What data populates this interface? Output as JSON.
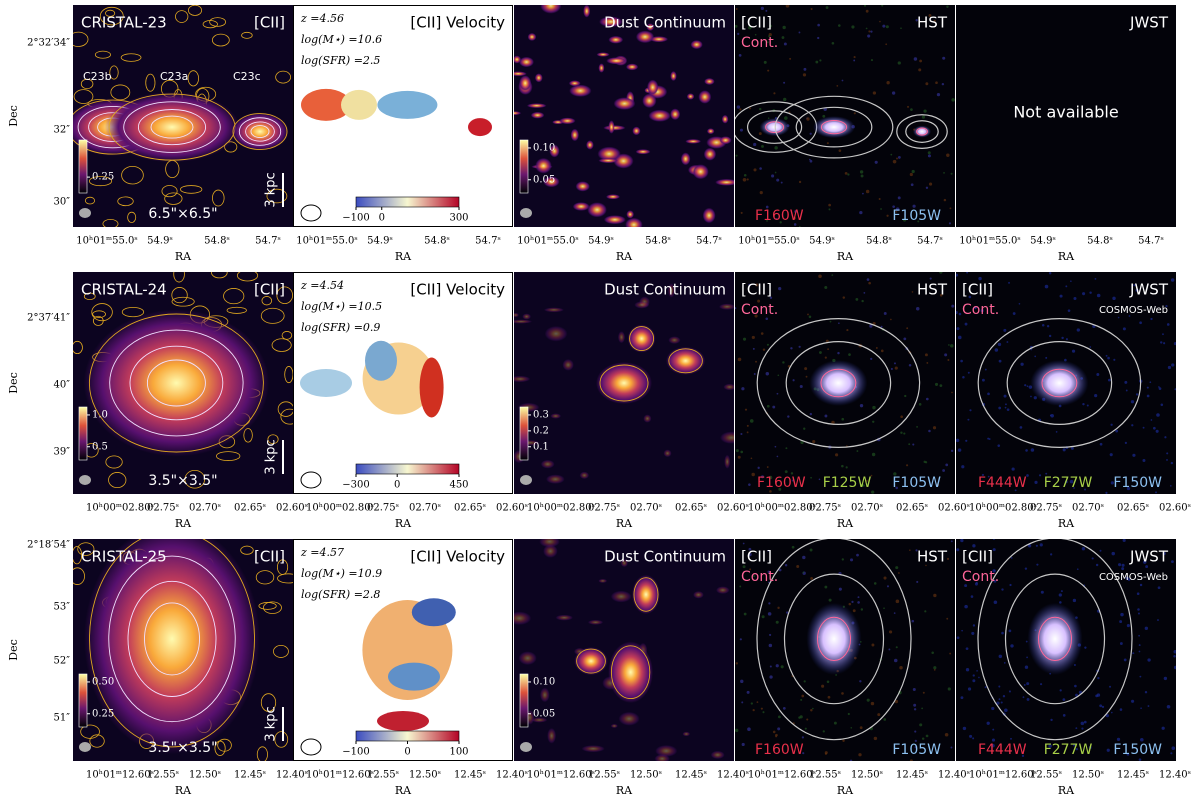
{
  "axis_label_x": "RA",
  "axis_label_y": "Dec",
  "rows": [
    {
      "dec_ticks": [
        "2°32′34″",
        "32″",
        "30″"
      ],
      "ra_ticks": [
        "10ʰ01ᵐ55.0ˢ",
        "54.9ˢ",
        "54.8ˢ",
        "54.7ˢ"
      ],
      "panels": [
        {
          "name": "CRISTAL-23",
          "line": "[CII]",
          "components": [
            "C23b",
            "C23a",
            "C23c"
          ],
          "size": "6.5\"×6.5\"",
          "scale": "3 kpc",
          "colorbar": [
            0.25
          ]
        },
        {
          "z": "z =4.56",
          "mass": "log(M⋆) =10.6",
          "sfr": "log(SFR) =2.5",
          "title": "[CII] Velocity",
          "colorbar": [
            {
              "value": -100,
              "label": "−100"
            },
            0,
            300
          ]
        },
        {
          "title": "Dust Continuum",
          "colorbar": [
            {
              "value": 0.1,
              "label": "0.10"
            },
            0.05
          ]
        },
        {
          "cii": "[CII]",
          "cont": "Cont.",
          "title": "HST",
          "filters": [
            "F160W",
            "F105W"
          ]
        },
        {
          "title": "JWST",
          "note": "Not available"
        }
      ]
    },
    {
      "dec_ticks": [
        "2°37′41″",
        "40″",
        "39″"
      ],
      "ra_ticks": [
        "10ʰ00ᵐ02.80ˢ",
        "02.75ˢ",
        "02.70ˢ",
        "02.65ˢ",
        "02.60ˢ"
      ],
      "panels": [
        {
          "name": "CRISTAL-24",
          "line": "[CII]",
          "size": "3.5\"×3.5\"",
          "scale": "3 kpc",
          "colorbar": [
            {
              "value": 1,
              "label": "1.0"
            },
            0.5
          ]
        },
        {
          "z": "z =4.54",
          "mass": "log(M⋆) =10.5",
          "sfr": "log(SFR) =0.9",
          "title": "[CII] Velocity",
          "colorbar": [
            {
              "value": -300,
              "label": "−300"
            },
            0,
            450
          ]
        },
        {
          "title": "Dust Continuum",
          "colorbar": [
            0.3,
            0.2,
            0.1
          ]
        },
        {
          "cii": "[CII]",
          "cont": "Cont.",
          "title": "HST",
          "filters": [
            "F160W",
            "F125W",
            "F105W"
          ]
        },
        {
          "cii": "[CII]",
          "cont": "Cont.",
          "title": "JWST",
          "survey": "COSMOS-Web",
          "filters": [
            "F444W",
            "F277W",
            "F150W"
          ]
        }
      ]
    },
    {
      "dec_ticks": [
        "2°18′54″",
        "53″",
        "52″",
        "51″"
      ],
      "ra_ticks": [
        "10ʰ01ᵐ12.60ˢ",
        "12.55ˢ",
        "12.50ˢ",
        "12.45ˢ",
        "12.40ˢ"
      ],
      "panels": [
        {
          "name": "CRISTAL-25",
          "line": "[CII]",
          "size": "3.5\"×3.5\"",
          "scale": "3 kpc",
          "colorbar": [
            {
              "value": 0.5,
              "label": "0.50"
            },
            0.25
          ]
        },
        {
          "z": "z =4.57",
          "mass": "log(M⋆) =10.9",
          "sfr": "log(SFR) =2.8",
          "title": "[CII] Velocity",
          "colorbar": [
            {
              "value": -100,
              "label": "−100"
            },
            0,
            100
          ]
        },
        {
          "title": "Dust Continuum",
          "colorbar": [
            {
              "value": 0.1,
              "label": "0.10"
            },
            0.05
          ]
        },
        {
          "cii": "[CII]",
          "cont": "Cont.",
          "title": "HST",
          "filters": [
            "F160W",
            "F105W"
          ]
        },
        {
          "cii": "[CII]",
          "cont": "Cont.",
          "title": "JWST",
          "survey": "COSMOS-Web",
          "filters": [
            "F444W",
            "F277W",
            "F150W"
          ]
        }
      ]
    }
  ]
}
